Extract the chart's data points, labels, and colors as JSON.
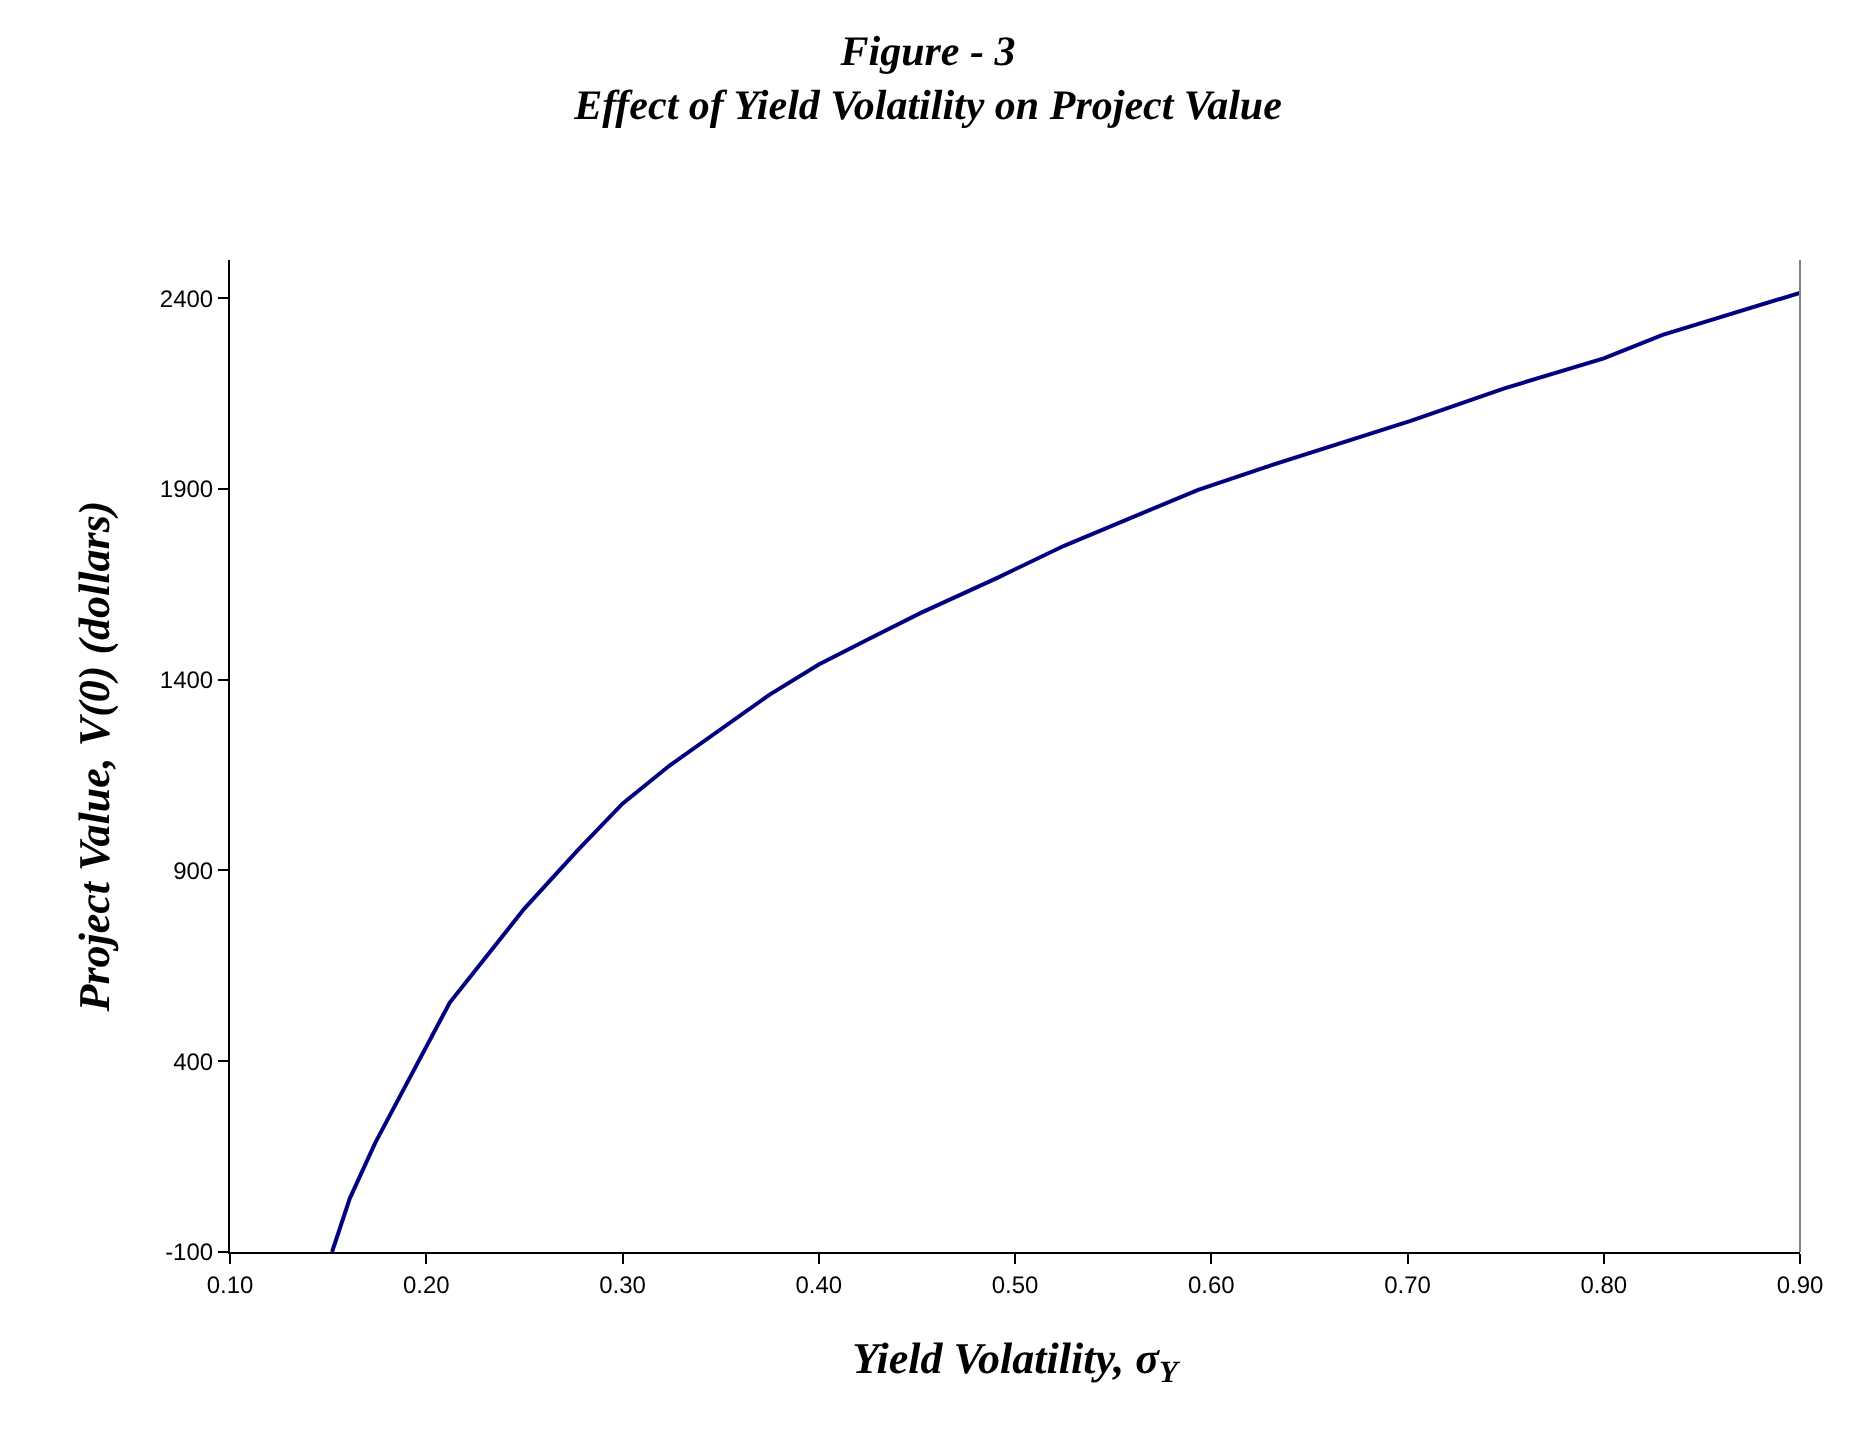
{
  "chart_data": {
    "type": "line",
    "title": "Figure - 3\nEffect of Yield Volatility on Project Value",
    "xlabel": "Yield Volatility, σ$_{Y}$",
    "ylabel": "Project Value, V(0) (dollars)",
    "x": [
      0.152,
      0.161,
      0.174,
      0.212,
      0.25,
      0.277,
      0.3,
      0.324,
      0.375,
      0.4,
      0.426,
      0.452,
      0.491,
      0.525,
      0.593,
      0.627,
      0.702,
      0.749,
      0.8,
      0.83,
      0.9
    ],
    "series": [
      {
        "color": "#000080",
        "values": [
          -100,
          40,
          186,
          554,
          800,
          952,
          1075,
          1175,
          1361,
          1440,
          1508,
          1575,
          1667,
          1751,
          1897,
          1956,
          2079,
          2163,
          2242,
          2304,
          2414
        ]
      }
    ],
    "xlim": [
      0.1,
      0.9
    ],
    "xticks": [
      {
        "value": 0.1,
        "label": "0.10"
      },
      {
        "value": 0.2,
        "label": "0.20"
      },
      {
        "value": 0.3,
        "label": "0.30"
      },
      {
        "value": 0.4,
        "label": "0.40"
      },
      {
        "value": 0.5,
        "label": "0.50"
      },
      {
        "value": 0.6,
        "label": "0.60"
      },
      {
        "value": 0.7,
        "label": "0.70"
      },
      {
        "value": 0.8,
        "label": "0.80"
      },
      {
        "value": 0.9,
        "label": "0.90"
      }
    ],
    "ylim": [
      -100,
      2500
    ],
    "yticks": [
      {
        "value": -100,
        "label": "-100"
      },
      400,
      900,
      1400,
      1900,
      2400
    ],
    "marker": "none",
    "line_style": "solid"
  }
}
